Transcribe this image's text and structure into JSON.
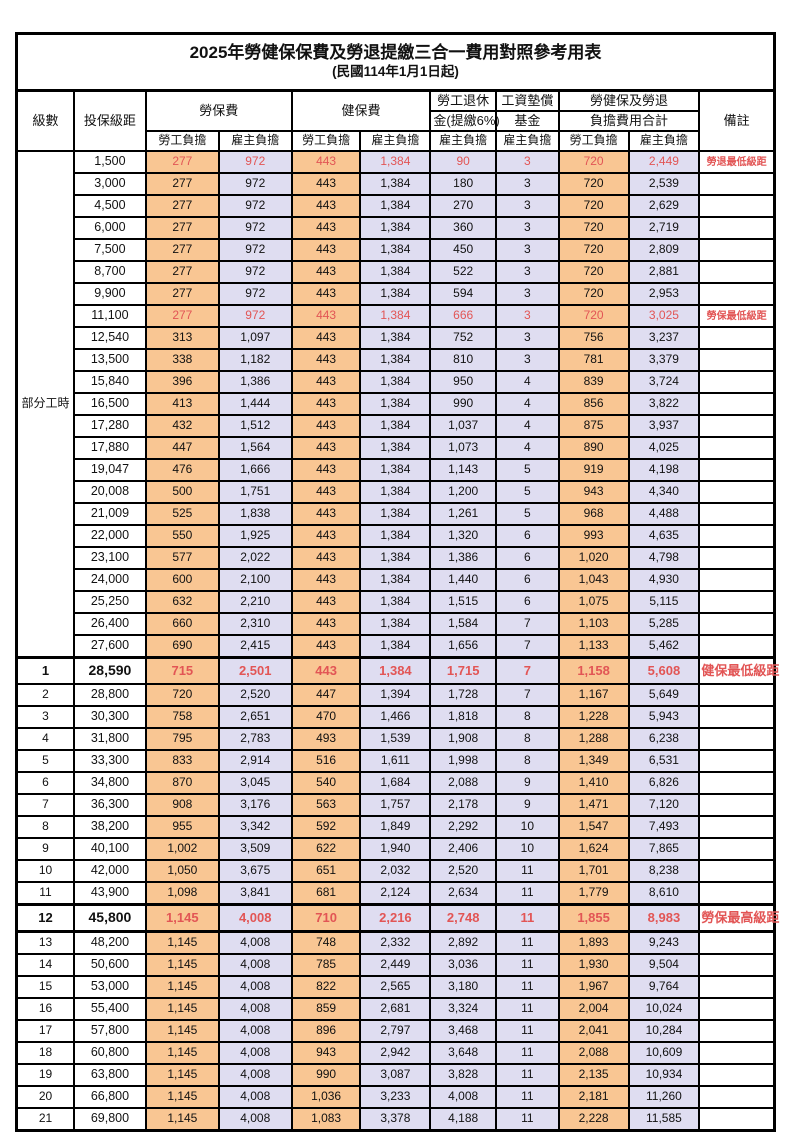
{
  "title": "2025年勞健保保費及勞退提繳三合一費用對照參考用表",
  "subtitle": "(民國114年1月1日起)",
  "header": {
    "level": "級數",
    "bracket": "投保級距",
    "labor_insurance": "勞保費",
    "health_insurance": "健保費",
    "pension_line1": "勞工退休",
    "pension_line2": "金(提繳6%)",
    "wage_fund_line1": "工資墊償",
    "wage_fund_line2": "基金",
    "total_line1": "勞健保及勞退",
    "total_line2": "負擔費用合計",
    "remark": "備註",
    "employee_burden": "勞工負擔",
    "employer_burden": "雇主負擔"
  },
  "part_time_label": "部分工時",
  "colors": {
    "employee_bg": "#f9c693",
    "employer_bg": "#dfddf1",
    "highlight_red": "#e25555",
    "border": "#000000"
  },
  "chart_data": {
    "type": "table",
    "title": "2025年勞健保保費及勞退提繳三合一費用對照參考用表 (民國114年1月1日起)",
    "columns": [
      "級數",
      "投保級距",
      "勞保費-勞工負擔",
      "勞保費-雇主負擔",
      "健保費-勞工負擔",
      "健保費-雇主負擔",
      "勞工退休金(提繳6%)-雇主負擔",
      "工資墊償基金-雇主負擔",
      "合計-勞工負擔",
      "合計-雇主負擔",
      "備註"
    ]
  },
  "rows": [
    {
      "lv": null,
      "br": "1,500",
      "v": [
        "277",
        "972",
        "443",
        "1,384",
        "90",
        "3",
        "720",
        "2,449"
      ],
      "rm": "勞退最低級距",
      "red": true,
      "bold": false
    },
    {
      "lv": null,
      "br": "3,000",
      "v": [
        "277",
        "972",
        "443",
        "1,384",
        "180",
        "3",
        "720",
        "2,539"
      ],
      "rm": "",
      "red": false,
      "bold": false
    },
    {
      "lv": null,
      "br": "4,500",
      "v": [
        "277",
        "972",
        "443",
        "1,384",
        "270",
        "3",
        "720",
        "2,629"
      ],
      "rm": "",
      "red": false,
      "bold": false
    },
    {
      "lv": null,
      "br": "6,000",
      "v": [
        "277",
        "972",
        "443",
        "1,384",
        "360",
        "3",
        "720",
        "2,719"
      ],
      "rm": "",
      "red": false,
      "bold": false
    },
    {
      "lv": null,
      "br": "7,500",
      "v": [
        "277",
        "972",
        "443",
        "1,384",
        "450",
        "3",
        "720",
        "2,809"
      ],
      "rm": "",
      "red": false,
      "bold": false
    },
    {
      "lv": null,
      "br": "8,700",
      "v": [
        "277",
        "972",
        "443",
        "1,384",
        "522",
        "3",
        "720",
        "2,881"
      ],
      "rm": "",
      "red": false,
      "bold": false
    },
    {
      "lv": null,
      "br": "9,900",
      "v": [
        "277",
        "972",
        "443",
        "1,384",
        "594",
        "3",
        "720",
        "2,953"
      ],
      "rm": "",
      "red": false,
      "bold": false
    },
    {
      "lv": null,
      "br": "11,100",
      "v": [
        "277",
        "972",
        "443",
        "1,384",
        "666",
        "3",
        "720",
        "3,025"
      ],
      "rm": "勞保最低級距",
      "red": true,
      "bold": false
    },
    {
      "lv": null,
      "br": "12,540",
      "v": [
        "313",
        "1,097",
        "443",
        "1,384",
        "752",
        "3",
        "756",
        "3,237"
      ],
      "rm": "",
      "red": false,
      "bold": false
    },
    {
      "lv": null,
      "br": "13,500",
      "v": [
        "338",
        "1,182",
        "443",
        "1,384",
        "810",
        "3",
        "781",
        "3,379"
      ],
      "rm": "",
      "red": false,
      "bold": false
    },
    {
      "lv": null,
      "br": "15,840",
      "v": [
        "396",
        "1,386",
        "443",
        "1,384",
        "950",
        "4",
        "839",
        "3,724"
      ],
      "rm": "",
      "red": false,
      "bold": false
    },
    {
      "lv": null,
      "br": "16,500",
      "v": [
        "413",
        "1,444",
        "443",
        "1,384",
        "990",
        "4",
        "856",
        "3,822"
      ],
      "rm": "",
      "red": false,
      "bold": false
    },
    {
      "lv": null,
      "br": "17,280",
      "v": [
        "432",
        "1,512",
        "443",
        "1,384",
        "1,037",
        "4",
        "875",
        "3,937"
      ],
      "rm": "",
      "red": false,
      "bold": false
    },
    {
      "lv": null,
      "br": "17,880",
      "v": [
        "447",
        "1,564",
        "443",
        "1,384",
        "1,073",
        "4",
        "890",
        "4,025"
      ],
      "rm": "",
      "red": false,
      "bold": false
    },
    {
      "lv": null,
      "br": "19,047",
      "v": [
        "476",
        "1,666",
        "443",
        "1,384",
        "1,143",
        "5",
        "919",
        "4,198"
      ],
      "rm": "",
      "red": false,
      "bold": false
    },
    {
      "lv": null,
      "br": "20,008",
      "v": [
        "500",
        "1,751",
        "443",
        "1,384",
        "1,200",
        "5",
        "943",
        "4,340"
      ],
      "rm": "",
      "red": false,
      "bold": false
    },
    {
      "lv": null,
      "br": "21,009",
      "v": [
        "525",
        "1,838",
        "443",
        "1,384",
        "1,261",
        "5",
        "968",
        "4,488"
      ],
      "rm": "",
      "red": false,
      "bold": false
    },
    {
      "lv": null,
      "br": "22,000",
      "v": [
        "550",
        "1,925",
        "443",
        "1,384",
        "1,320",
        "6",
        "993",
        "4,635"
      ],
      "rm": "",
      "red": false,
      "bold": false
    },
    {
      "lv": null,
      "br": "23,100",
      "v": [
        "577",
        "2,022",
        "443",
        "1,384",
        "1,386",
        "6",
        "1,020",
        "4,798"
      ],
      "rm": "",
      "red": false,
      "bold": false
    },
    {
      "lv": null,
      "br": "24,000",
      "v": [
        "600",
        "2,100",
        "443",
        "1,384",
        "1,440",
        "6",
        "1,043",
        "4,930"
      ],
      "rm": "",
      "red": false,
      "bold": false
    },
    {
      "lv": null,
      "br": "25,250",
      "v": [
        "632",
        "2,210",
        "443",
        "1,384",
        "1,515",
        "6",
        "1,075",
        "5,115"
      ],
      "rm": "",
      "red": false,
      "bold": false
    },
    {
      "lv": null,
      "br": "26,400",
      "v": [
        "660",
        "2,310",
        "443",
        "1,384",
        "1,584",
        "7",
        "1,103",
        "5,285"
      ],
      "rm": "",
      "red": false,
      "bold": false
    },
    {
      "lv": null,
      "br": "27,600",
      "v": [
        "690",
        "2,415",
        "443",
        "1,384",
        "1,656",
        "7",
        "1,133",
        "5,462"
      ],
      "rm": "",
      "red": false,
      "bold": false
    },
    {
      "lv": "1",
      "br": "28,590",
      "v": [
        "715",
        "2,501",
        "443",
        "1,384",
        "1,715",
        "7",
        "1,158",
        "5,608"
      ],
      "rm": "健保最低級距",
      "red": true,
      "bold": true,
      "thick_top": true
    },
    {
      "lv": "2",
      "br": "28,800",
      "v": [
        "720",
        "2,520",
        "447",
        "1,394",
        "1,728",
        "7",
        "1,167",
        "5,649"
      ],
      "rm": "",
      "red": false,
      "bold": false
    },
    {
      "lv": "3",
      "br": "30,300",
      "v": [
        "758",
        "2,651",
        "470",
        "1,466",
        "1,818",
        "8",
        "1,228",
        "5,943"
      ],
      "rm": "",
      "red": false,
      "bold": false
    },
    {
      "lv": "4",
      "br": "31,800",
      "v": [
        "795",
        "2,783",
        "493",
        "1,539",
        "1,908",
        "8",
        "1,288",
        "6,238"
      ],
      "rm": "",
      "red": false,
      "bold": false
    },
    {
      "lv": "5",
      "br": "33,300",
      "v": [
        "833",
        "2,914",
        "516",
        "1,611",
        "1,998",
        "8",
        "1,349",
        "6,531"
      ],
      "rm": "",
      "red": false,
      "bold": false
    },
    {
      "lv": "6",
      "br": "34,800",
      "v": [
        "870",
        "3,045",
        "540",
        "1,684",
        "2,088",
        "9",
        "1,410",
        "6,826"
      ],
      "rm": "",
      "red": false,
      "bold": false
    },
    {
      "lv": "7",
      "br": "36,300",
      "v": [
        "908",
        "3,176",
        "563",
        "1,757",
        "2,178",
        "9",
        "1,471",
        "7,120"
      ],
      "rm": "",
      "red": false,
      "bold": false
    },
    {
      "lv": "8",
      "br": "38,200",
      "v": [
        "955",
        "3,342",
        "592",
        "1,849",
        "2,292",
        "10",
        "1,547",
        "7,493"
      ],
      "rm": "",
      "red": false,
      "bold": false
    },
    {
      "lv": "9",
      "br": "40,100",
      "v": [
        "1,002",
        "3,509",
        "622",
        "1,940",
        "2,406",
        "10",
        "1,624",
        "7,865"
      ],
      "rm": "",
      "red": false,
      "bold": false
    },
    {
      "lv": "10",
      "br": "42,000",
      "v": [
        "1,050",
        "3,675",
        "651",
        "2,032",
        "2,520",
        "11",
        "1,701",
        "8,238"
      ],
      "rm": "",
      "red": false,
      "bold": false
    },
    {
      "lv": "11",
      "br": "43,900",
      "v": [
        "1,098",
        "3,841",
        "681",
        "2,124",
        "2,634",
        "11",
        "1,779",
        "8,610"
      ],
      "rm": "",
      "red": false,
      "bold": false
    },
    {
      "lv": "12",
      "br": "45,800",
      "v": [
        "1,145",
        "4,008",
        "710",
        "2,216",
        "2,748",
        "11",
        "1,855",
        "8,983"
      ],
      "rm": "勞保最高級距",
      "red": true,
      "bold": true,
      "thick_top": true,
      "thick_bottom": true
    },
    {
      "lv": "13",
      "br": "48,200",
      "v": [
        "1,145",
        "4,008",
        "748",
        "2,332",
        "2,892",
        "11",
        "1,893",
        "9,243"
      ],
      "rm": "",
      "red": false,
      "bold": false
    },
    {
      "lv": "14",
      "br": "50,600",
      "v": [
        "1,145",
        "4,008",
        "785",
        "2,449",
        "3,036",
        "11",
        "1,930",
        "9,504"
      ],
      "rm": "",
      "red": false,
      "bold": false
    },
    {
      "lv": "15",
      "br": "53,000",
      "v": [
        "1,145",
        "4,008",
        "822",
        "2,565",
        "3,180",
        "11",
        "1,967",
        "9,764"
      ],
      "rm": "",
      "red": false,
      "bold": false
    },
    {
      "lv": "16",
      "br": "55,400",
      "v": [
        "1,145",
        "4,008",
        "859",
        "2,681",
        "3,324",
        "11",
        "2,004",
        "10,024"
      ],
      "rm": "",
      "red": false,
      "bold": false
    },
    {
      "lv": "17",
      "br": "57,800",
      "v": [
        "1,145",
        "4,008",
        "896",
        "2,797",
        "3,468",
        "11",
        "2,041",
        "10,284"
      ],
      "rm": "",
      "red": false,
      "bold": false
    },
    {
      "lv": "18",
      "br": "60,800",
      "v": [
        "1,145",
        "4,008",
        "943",
        "2,942",
        "3,648",
        "11",
        "2,088",
        "10,609"
      ],
      "rm": "",
      "red": false,
      "bold": false
    },
    {
      "lv": "19",
      "br": "63,800",
      "v": [
        "1,145",
        "4,008",
        "990",
        "3,087",
        "3,828",
        "11",
        "2,135",
        "10,934"
      ],
      "rm": "",
      "red": false,
      "bold": false
    },
    {
      "lv": "20",
      "br": "66,800",
      "v": [
        "1,145",
        "4,008",
        "1,036",
        "3,233",
        "4,008",
        "11",
        "2,181",
        "11,260"
      ],
      "rm": "",
      "red": false,
      "bold": false
    },
    {
      "lv": "21",
      "br": "69,800",
      "v": [
        "1,145",
        "4,008",
        "1,083",
        "3,378",
        "4,188",
        "11",
        "2,228",
        "11,585"
      ],
      "rm": "",
      "red": false,
      "bold": false
    }
  ]
}
